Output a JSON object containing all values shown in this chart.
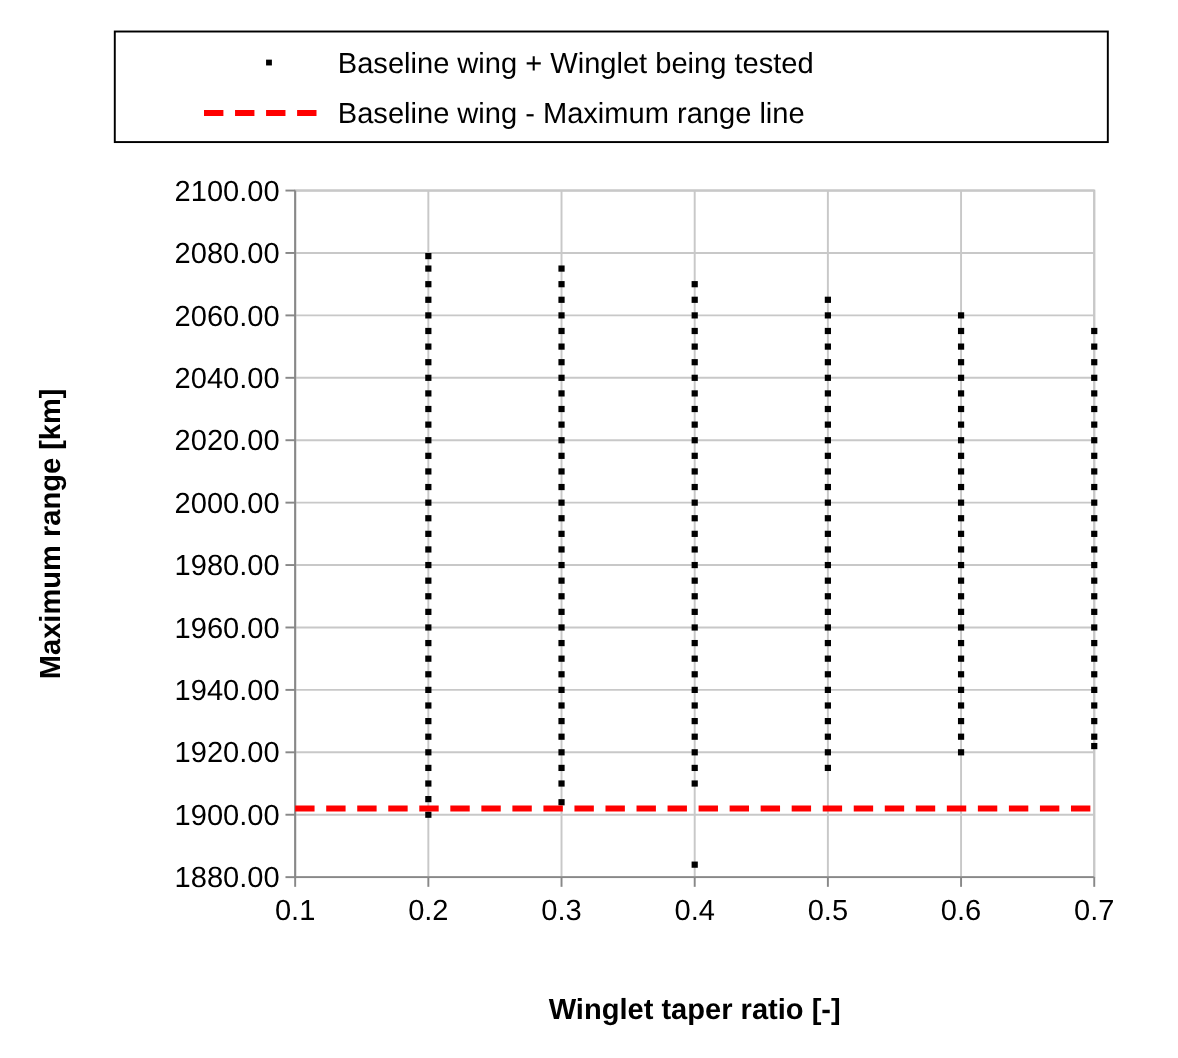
{
  "chart_data": {
    "type": "scatter",
    "xlabel": "Winglet taper ratio [-]",
    "ylabel": "Maximum range  [km]",
    "xlim": [
      0.1,
      0.7
    ],
    "xticks": [
      0.1,
      0.2,
      0.3,
      0.4,
      0.5,
      0.6,
      0.7
    ],
    "ylim": [
      1880,
      2100
    ],
    "yticks": [
      {
        "value": 1880,
        "label": "1880.00"
      },
      {
        "value": 1900,
        "label": "1900.00"
      },
      {
        "value": 1920,
        "label": "1920.00"
      },
      {
        "value": 1940,
        "label": "1940.00"
      },
      {
        "value": 1960,
        "label": "1960.00"
      },
      {
        "value": 1980,
        "label": "1980.00"
      },
      {
        "value": 2000,
        "label": "2000.00"
      },
      {
        "value": 2020,
        "label": "2020.00"
      },
      {
        "value": 2040,
        "label": "2040.00"
      },
      {
        "value": 2060,
        "label": "2060.00"
      },
      {
        "value": 2080,
        "label": "2080.00"
      },
      {
        "value": 2100,
        "label": "2100.00"
      }
    ],
    "grid": true,
    "legend": "top",
    "marker": "square",
    "series": [
      {
        "name": "Baseline wing + Winglet being tested",
        "color": "#000000",
        "x": [
          0.2,
          0.2,
          0.2,
          0.2,
          0.2,
          0.2,
          0.2,
          0.2,
          0.2,
          0.2,
          0.2,
          0.2,
          0.2,
          0.2,
          0.2,
          0.2,
          0.2,
          0.2,
          0.2,
          0.2,
          0.2,
          0.2,
          0.2,
          0.2,
          0.2,
          0.2,
          0.2,
          0.2,
          0.2,
          0.2,
          0.2,
          0.2,
          0.2,
          0.2,
          0.2,
          0.2,
          0.2,
          0.3,
          0.3,
          0.3,
          0.3,
          0.3,
          0.3,
          0.3,
          0.3,
          0.3,
          0.3,
          0.3,
          0.3,
          0.3,
          0.3,
          0.3,
          0.3,
          0.3,
          0.3,
          0.3,
          0.3,
          0.3,
          0.3,
          0.3,
          0.3,
          0.3,
          0.3,
          0.3,
          0.3,
          0.3,
          0.3,
          0.3,
          0.3,
          0.3,
          0.3,
          0.3,
          0.4,
          0.4,
          0.4,
          0.4,
          0.4,
          0.4,
          0.4,
          0.4,
          0.4,
          0.4,
          0.4,
          0.4,
          0.4,
          0.4,
          0.4,
          0.4,
          0.4,
          0.4,
          0.4,
          0.4,
          0.4,
          0.4,
          0.4,
          0.4,
          0.4,
          0.4,
          0.4,
          0.4,
          0.4,
          0.4,
          0.4,
          0.4,
          0.4,
          0.4,
          0.5,
          0.5,
          0.5,
          0.5,
          0.5,
          0.5,
          0.5,
          0.5,
          0.5,
          0.5,
          0.5,
          0.5,
          0.5,
          0.5,
          0.5,
          0.5,
          0.5,
          0.5,
          0.5,
          0.5,
          0.5,
          0.5,
          0.5,
          0.5,
          0.5,
          0.5,
          0.5,
          0.5,
          0.5,
          0.5,
          0.5,
          0.6,
          0.6,
          0.6,
          0.6,
          0.6,
          0.6,
          0.6,
          0.6,
          0.6,
          0.6,
          0.6,
          0.6,
          0.6,
          0.6,
          0.6,
          0.6,
          0.6,
          0.6,
          0.6,
          0.6,
          0.6,
          0.6,
          0.6,
          0.6,
          0.6,
          0.6,
          0.6,
          0.6,
          0.6,
          0.7,
          0.7,
          0.7,
          0.7,
          0.7,
          0.7,
          0.7,
          0.7,
          0.7,
          0.7,
          0.7,
          0.7,
          0.7,
          0.7,
          0.7,
          0.7,
          0.7,
          0.7,
          0.7,
          0.7,
          0.7,
          0.7,
          0.7,
          0.7,
          0.7,
          0.7,
          0.7,
          0.7
        ],
        "values": [
          1900,
          1905,
          1910,
          1915,
          1920,
          1925,
          1930,
          1935,
          1940,
          1945,
          1950,
          1955,
          1960,
          1965,
          1970,
          1975,
          1980,
          1985,
          1990,
          1995,
          2000,
          2005,
          2010,
          2015,
          2020,
          2025,
          2030,
          2035,
          2040,
          2045,
          2050,
          2055,
          2060,
          2065,
          2070,
          2075,
          2079,
          1904,
          1910,
          1915,
          1920,
          1925,
          1930,
          1935,
          1940,
          1945,
          1950,
          1955,
          1960,
          1965,
          1970,
          1975,
          1980,
          1985,
          1990,
          1995,
          2000,
          2005,
          2010,
          2015,
          2020,
          2025,
          2030,
          2035,
          2040,
          2045,
          2050,
          2055,
          2060,
          2065,
          2070,
          2075,
          1884,
          1910,
          1915,
          1920,
          1925,
          1930,
          1935,
          1940,
          1945,
          1950,
          1955,
          1960,
          1965,
          1970,
          1975,
          1980,
          1985,
          1990,
          1995,
          2000,
          2005,
          2010,
          2015,
          2020,
          2025,
          2030,
          2035,
          2040,
          2045,
          2050,
          2055,
          2060,
          2065,
          2070,
          1915,
          1920,
          1925,
          1930,
          1935,
          1940,
          1945,
          1950,
          1955,
          1960,
          1965,
          1970,
          1975,
          1980,
          1985,
          1990,
          1995,
          2000,
          2005,
          2010,
          2015,
          2020,
          2025,
          2030,
          2035,
          2040,
          2045,
          2050,
          2055,
          2060,
          2065,
          1920,
          1925,
          1930,
          1935,
          1940,
          1945,
          1950,
          1955,
          1960,
          1965,
          1970,
          1975,
          1980,
          1985,
          1990,
          1995,
          2000,
          2005,
          2010,
          2015,
          2020,
          2025,
          2030,
          2035,
          2040,
          2045,
          2050,
          2055,
          2060,
          1922,
          1925,
          1930,
          1935,
          1940,
          1945,
          1950,
          1955,
          1960,
          1965,
          1970,
          1975,
          1980,
          1985,
          1990,
          1995,
          2000,
          2005,
          2010,
          2015,
          2020,
          2025,
          2030,
          2035,
          2040,
          2045,
          2050,
          2055
        ]
      }
    ],
    "ref_lines": [
      {
        "axis": "y",
        "value": 1902,
        "label": "Baseline wing - Maximum range line",
        "color": "#ff0000",
        "line_style": "dashed"
      }
    ]
  }
}
